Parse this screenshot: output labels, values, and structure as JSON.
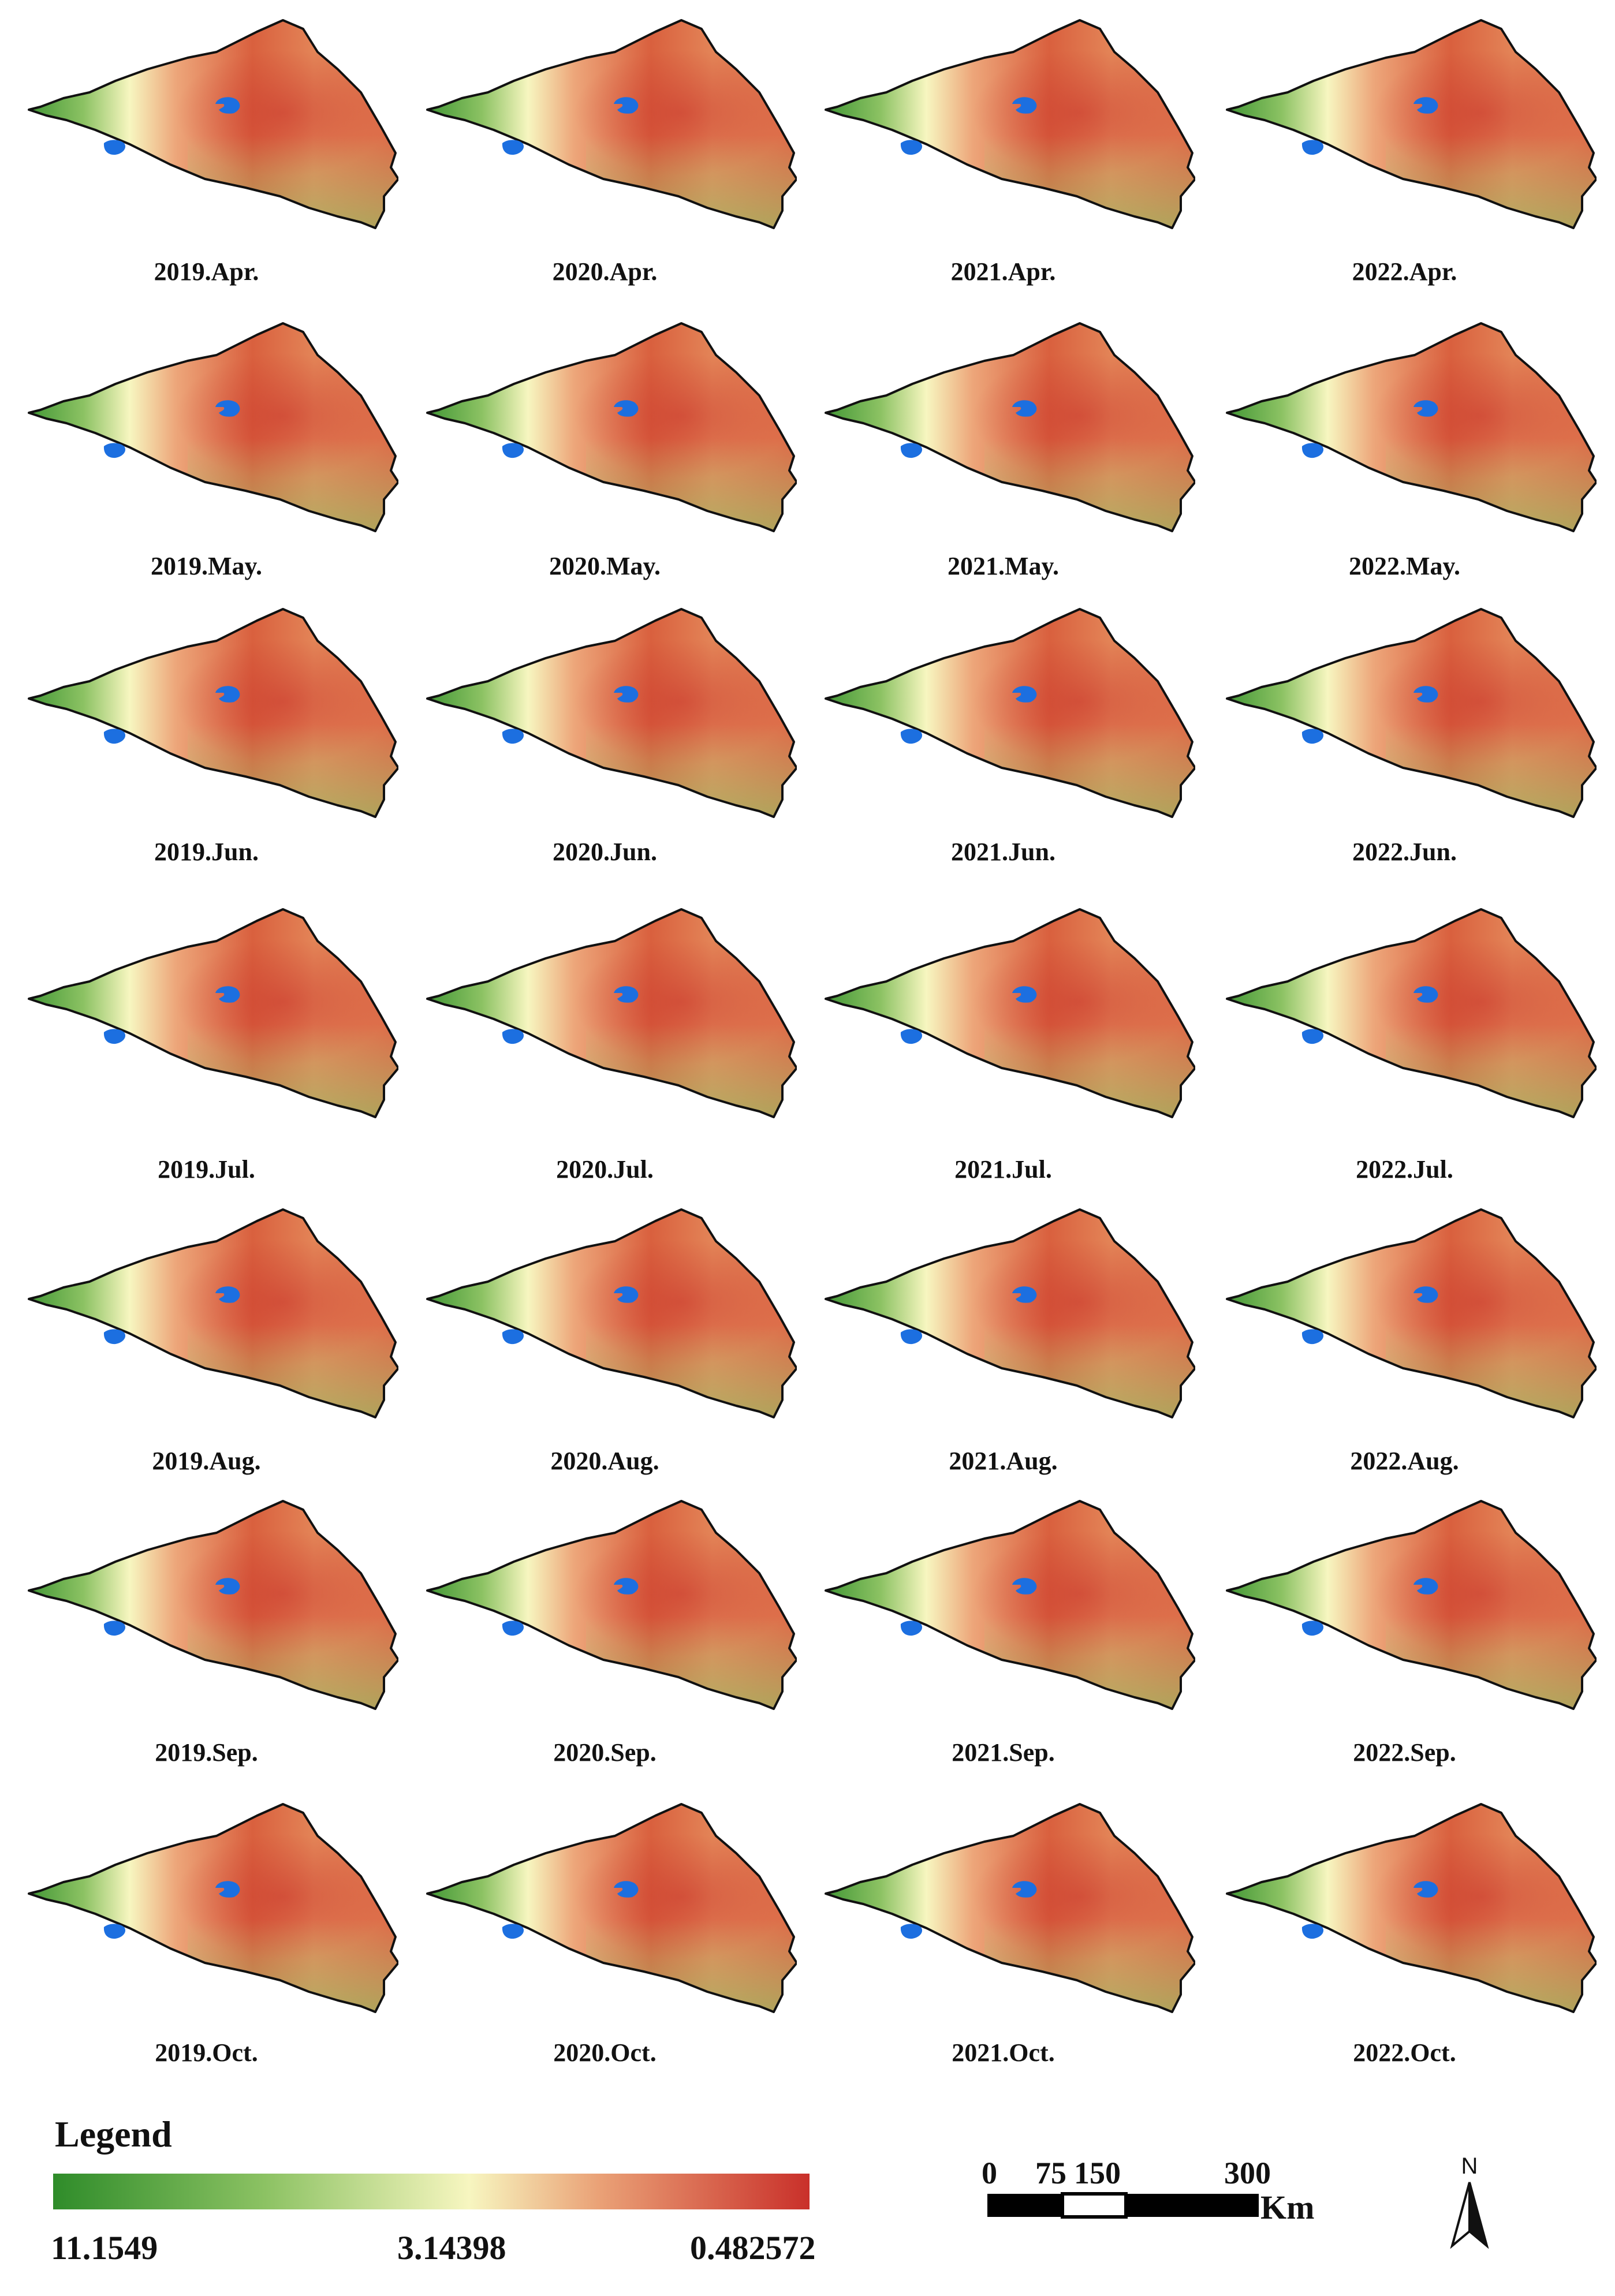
{
  "panels": [
    {
      "label": "2019.Apr."
    },
    {
      "label": "2020.Apr."
    },
    {
      "label": "2021.Apr."
    },
    {
      "label": "2022.Apr."
    },
    {
      "label": "2019.May."
    },
    {
      "label": "2020.May."
    },
    {
      "label": "2021.May."
    },
    {
      "label": "2022.May."
    },
    {
      "label": "2019.Jun."
    },
    {
      "label": "2020.Jun."
    },
    {
      "label": "2021.Jun."
    },
    {
      "label": "2022.Jun."
    },
    {
      "label": "2019.Jul."
    },
    {
      "label": "2020.Jul."
    },
    {
      "label": "2021.Jul."
    },
    {
      "label": "2022.Jul."
    },
    {
      "label": "2019.Aug."
    },
    {
      "label": "2020.Aug."
    },
    {
      "label": "2021.Aug."
    },
    {
      "label": "2022.Aug."
    },
    {
      "label": "2019.Sep."
    },
    {
      "label": "2020.Sep."
    },
    {
      "label": "2021.Sep."
    },
    {
      "label": "2022.Sep."
    },
    {
      "label": "2019.Oct."
    },
    {
      "label": "2020.Oct."
    },
    {
      "label": "2021.Oct."
    },
    {
      "label": "2022.Oct."
    }
  ],
  "legend": {
    "title": "Legend",
    "max_label": "11.1549",
    "mid_label": "3.14398",
    "min_label": "0.482572",
    "colors": [
      "#2f8c2a",
      "#8cc263",
      "#f7f6c0",
      "#eaa277",
      "#c9302a"
    ]
  },
  "scale_bar": {
    "ticks": [
      "0",
      "75",
      "150",
      "300"
    ],
    "unit": "Km"
  },
  "north_arrow": {
    "label": "N",
    "icon": "north-arrow-icon"
  },
  "colors": {
    "lake": "#1c6fe0",
    "outline": "#111111"
  }
}
